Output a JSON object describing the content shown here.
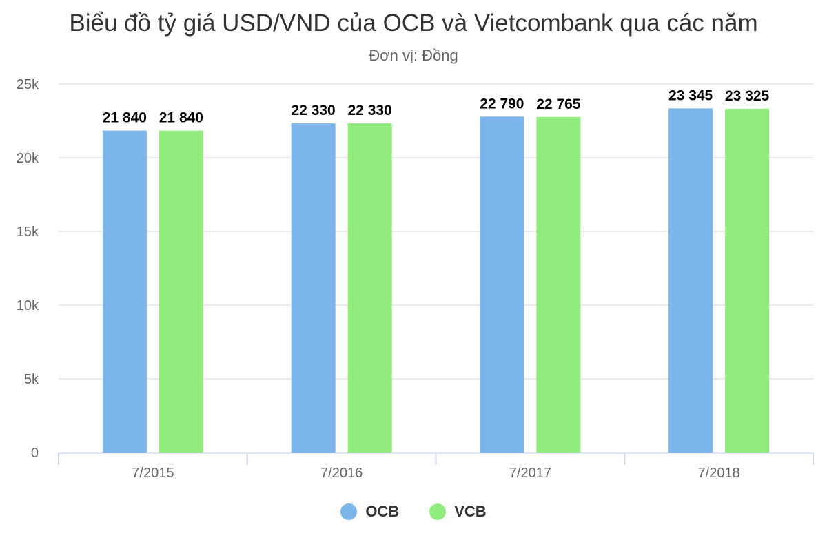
{
  "header": {
    "title": "Biểu đồ tỷ giá USD/VND của OCB và Vietcombank qua các năm",
    "subtitle": "Đơn vị: Đồng"
  },
  "legend": [
    {
      "label": "OCB",
      "color": "#7cb5ec"
    },
    {
      "label": "VCB",
      "color": "#90ed7d"
    }
  ],
  "chart_data": {
    "type": "bar",
    "title": "Biểu đồ tỷ giá USD/VND của OCB và Vietcombank qua các năm",
    "subtitle": "Đơn vị: Đồng",
    "xlabel": "",
    "ylabel": "",
    "categories": [
      "7/2015",
      "7/2016",
      "7/2017",
      "7/2018"
    ],
    "series": [
      {
        "name": "OCB",
        "color": "#7cb5ec",
        "values": [
          21840,
          22330,
          22790,
          23345
        ],
        "labels": [
          "21 840",
          "22 330",
          "22 790",
          "23 345"
        ]
      },
      {
        "name": "VCB",
        "color": "#90ed7d",
        "values": [
          21840,
          22330,
          22765,
          23325
        ],
        "labels": [
          "21 840",
          "22 330",
          "22 765",
          "23 325"
        ]
      }
    ],
    "ylim": [
      0,
      25000
    ],
    "yticks": [
      0,
      5000,
      10000,
      15000,
      20000,
      25000
    ],
    "ytick_labels": [
      "0",
      "5k",
      "10k",
      "15k",
      "20k",
      "25k"
    ],
    "grid": true,
    "legend_position": "bottom"
  }
}
